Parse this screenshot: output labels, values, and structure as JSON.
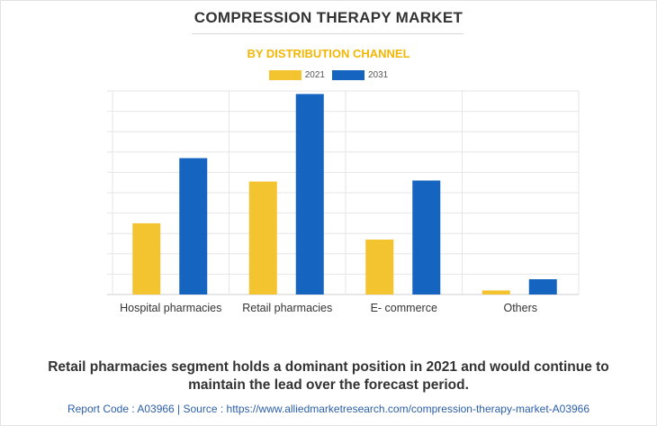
{
  "header": {
    "title": "COMPRESSION THERAPY MARKET",
    "subtitle": "BY DISTRIBUTION CHANNEL"
  },
  "colors": {
    "series_2021": "#f4c430",
    "series_2031": "#1565c0"
  },
  "chart_data": {
    "type": "bar",
    "title": "COMPRESSION THERAPY MARKET",
    "subtitle": "BY DISTRIBUTION CHANNEL",
    "categories": [
      "Hospital pharmacies",
      "Retail pharmacies",
      "E- commerce",
      "Others"
    ],
    "series": [
      {
        "name": "2021",
        "values": [
          35,
          55.5,
          27,
          2
        ],
        "color": "#f4c430"
      },
      {
        "name": "2031",
        "values": [
          67,
          98.5,
          56,
          7.5
        ],
        "color": "#1565c0"
      }
    ],
    "ylim": [
      0,
      100
    ],
    "y_tick_labels_shown": false,
    "grid": true,
    "legend": "top-center"
  },
  "caption": "Retail pharmacies segment holds a dominant position in 2021 and would continue to maintain the lead over the forecast period.",
  "footer": "Report Code : A03966  |  Source : https://www.alliedmarketresearch.com/compression-therapy-market-A03966"
}
